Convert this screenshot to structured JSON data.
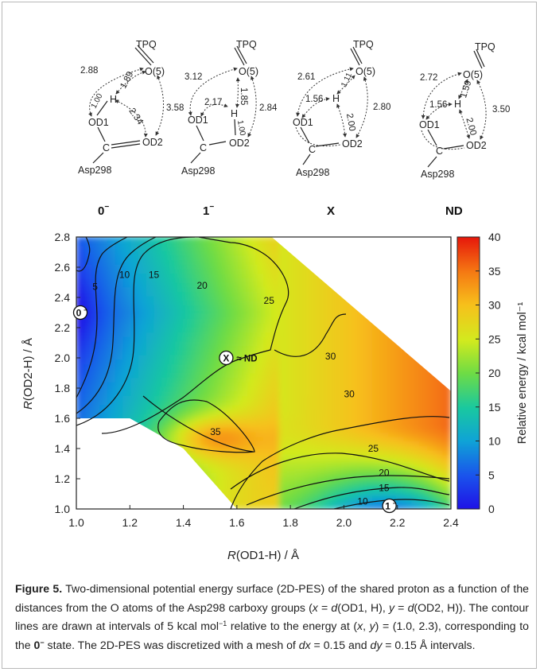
{
  "structures": [
    {
      "label": "0",
      "charge": "−",
      "tpq": "TPQ",
      "o5": "O(5)",
      "h": "H",
      "od1": "OD1",
      "od2": "OD2",
      "c": "C",
      "asp": "Asp298",
      "distances": {
        "od1_o5": "2.88",
        "h_o5": "1.89",
        "od1_h": "1.00",
        "h_od2": "2.34",
        "o5_od2": "3.58"
      }
    },
    {
      "label": "1",
      "charge": "−",
      "tpq": "TPQ",
      "o5": "O(5)",
      "h": "H",
      "od1": "OD1",
      "od2": "OD2",
      "c": "C",
      "asp": "Asp298",
      "distances": {
        "od1_o5": "3.12",
        "h_o5": "1.85",
        "od1_h": "2.17",
        "h_od2": "1.00",
        "o5_od2": "2.84"
      }
    },
    {
      "label": "X",
      "charge": "",
      "tpq": "TPQ",
      "o5": "O(5)",
      "h": "H",
      "od1": "OD1",
      "od2": "OD2",
      "c": "C",
      "asp": "Asp298",
      "distances": {
        "od1_o5": "2.61",
        "h_o5": "1.11",
        "od1_h": "1.56",
        "h_od2": "2.00",
        "o5_od2": "2.80"
      }
    },
    {
      "label": "ND",
      "charge": "",
      "tpq": "TPQ",
      "o5": "O(5)",
      "h": "H",
      "od1": "OD1",
      "od2": "OD2",
      "c": "C",
      "asp": "Asp298",
      "distances": {
        "od1_o5": "2.72",
        "h_o5": "1.59",
        "od1_h": "1.56",
        "h_od2": "2.00",
        "o5_od2": "3.50"
      }
    }
  ],
  "chart_data": {
    "type": "heatmap",
    "xlabel_var": "R",
    "xlabel_rest": "(OD1-H) / Å",
    "ylabel_var": "R",
    "ylabel_rest": "(OD2-H) / Å",
    "xlim": [
      1.0,
      2.4
    ],
    "ylim": [
      1.0,
      2.8
    ],
    "xticks": [
      "1.0",
      "1.2",
      "1.4",
      "1.6",
      "1.8",
      "2.0",
      "2.2",
      "2.4"
    ],
    "yticks": [
      "1.0",
      "1.2",
      "1.4",
      "1.6",
      "1.8",
      "2.0",
      "2.2",
      "2.4",
      "2.6",
      "2.8"
    ],
    "colorbar": {
      "label": "Relative energy  / kcal mol⁻¹",
      "min": 0,
      "max": 40,
      "ticks": [
        "0",
        "5",
        "10",
        "15",
        "20",
        "25",
        "30",
        "35",
        "40"
      ]
    },
    "contour_interval": 5,
    "contour_labels": [
      {
        "text": "5",
        "x": 1.07,
        "y": 2.47
      },
      {
        "text": "10",
        "x": 1.18,
        "y": 2.55
      },
      {
        "text": "15",
        "x": 1.29,
        "y": 2.55
      },
      {
        "text": "20",
        "x": 1.47,
        "y": 2.48
      },
      {
        "text": "25",
        "x": 1.72,
        "y": 2.38
      },
      {
        "text": "30",
        "x": 1.95,
        "y": 2.01
      },
      {
        "text": "30",
        "x": 2.02,
        "y": 1.76
      },
      {
        "text": "35",
        "x": 1.52,
        "y": 1.51
      },
      {
        "text": "25",
        "x": 2.11,
        "y": 1.4
      },
      {
        "text": "20",
        "x": 2.15,
        "y": 1.24
      },
      {
        "text": "15",
        "x": 2.15,
        "y": 1.14
      },
      {
        "text": "10",
        "x": 2.07,
        "y": 1.05
      }
    ],
    "state_markers": [
      {
        "text": "0",
        "sup": "−",
        "x": 1.0,
        "y": 2.3,
        "note": ""
      },
      {
        "text": "X",
        "sup": "",
        "x": 1.56,
        "y": 2.0,
        "note": "≈ ND"
      },
      {
        "text": "1",
        "sup": "−",
        "x": 2.17,
        "y": 1.0,
        "note": ""
      }
    ],
    "excluded_regions": [
      {
        "polygon": [
          [
            1.0,
            1.0
          ],
          [
            1.0,
            1.6
          ],
          [
            1.2,
            1.6
          ],
          [
            1.4,
            1.4
          ],
          [
            1.6,
            1.0
          ]
        ]
      },
      {
        "polygon": [
          [
            1.73,
            2.8
          ],
          [
            2.4,
            2.8
          ],
          [
            2.4,
            1.78
          ]
        ]
      }
    ]
  },
  "caption": {
    "fig": "Figure 5.",
    "t1": " Two-dimensional potential energy surface (2D-PES) of the shared proton as a function of the distances from the O atoms of the Asp298 carboxy groups (",
    "x": "x",
    "t2": " = ",
    "d1": "d",
    "t3": "(OD1, H), ",
    "y": "y",
    "t4": " = ",
    "d2": "d",
    "t5": "(OD2, H)). The contour lines are drawn at intervals of 5 kcal mol",
    "sup1": "−1",
    "t6": " relative to the energy at (",
    "x2": "x",
    "t7": ", ",
    "y2": "y",
    "t8": ") = (1.0, 2.3), corresponding to the ",
    "state": "0",
    "state_sup": "−",
    "t9": " state. The 2D-PES was discretized with a mesh of ",
    "dx": "dx",
    "t10": " = 0.15 and ",
    "dy": "dy",
    "t11": " = 0.15 Å intervals."
  }
}
